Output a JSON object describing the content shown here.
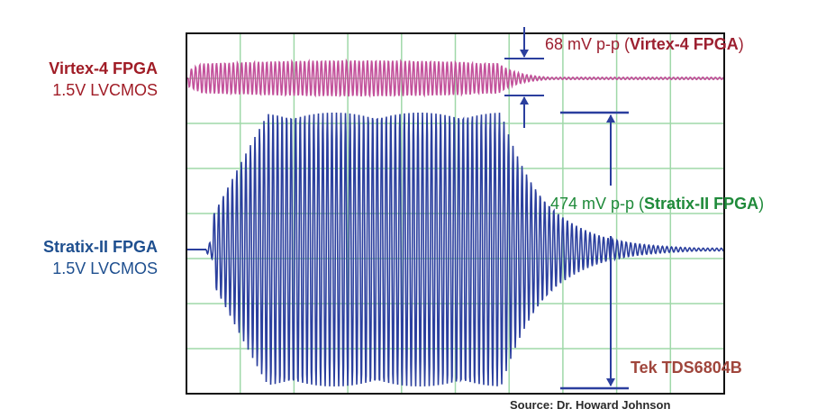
{
  "labels": {
    "virtex_name": "Virtex-4 FPGA",
    "virtex_sub": "1.5V LVCMOS",
    "stratix_name": "Stratix-II FPGA",
    "stratix_sub": "1.5V LVCMOS"
  },
  "annotations": {
    "virtex_value": "68 mV p-p (",
    "virtex_device": "Virtex-4 FPGA",
    "virtex_close": ")",
    "stratix_value": "474 mV p-p (",
    "stratix_device": "Stratix-II FPGA",
    "stratix_close": ")",
    "instrument": "Tek TDS6804B",
    "source": "Source: Dr. Howard Johnson"
  },
  "colors": {
    "virtex": "#c2509a",
    "stratix": "#2b3f9e",
    "grid": "#9fd8a8",
    "marker": "#2b3f9e"
  },
  "chart_data": {
    "type": "line",
    "grid": true,
    "grid_divisions": {
      "x": 10,
      "y": 8
    },
    "series": [
      {
        "name": "Virtex-4 FPGA",
        "peak_to_peak_mV": 68,
        "burst_divisions": [
          0,
          5.8
        ],
        "ringdown_end_division": 7.5
      },
      {
        "name": "Stratix-II FPGA",
        "peak_to_peak_mV": 474,
        "burst_divisions": [
          0.45,
          5.85
        ],
        "ringdown_end_division": 10
      }
    ]
  }
}
